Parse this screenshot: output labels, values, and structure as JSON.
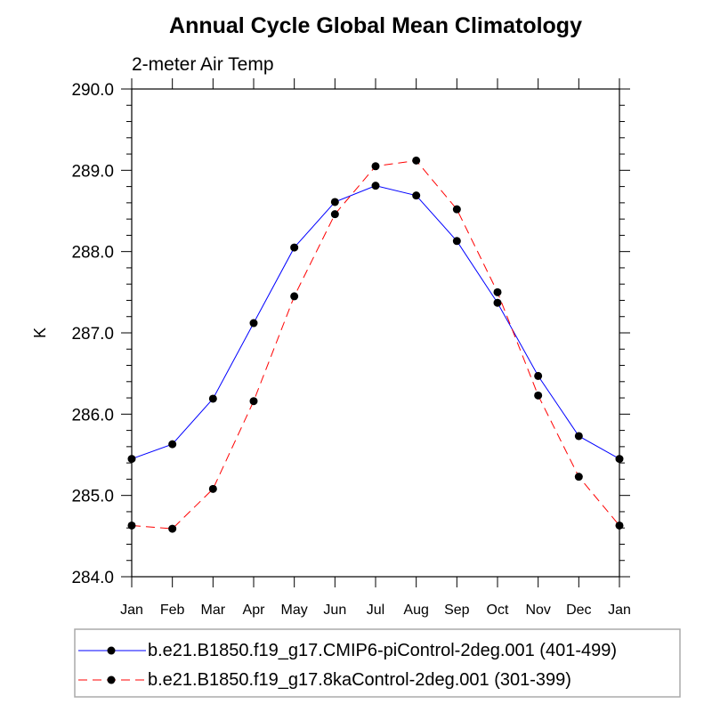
{
  "chart_data": {
    "type": "line",
    "title": "Annual Cycle Global Mean Climatology",
    "subtitle": "2-meter Air Temp",
    "xlabel": "",
    "ylabel": "K",
    "categories": [
      "Jan",
      "Feb",
      "Mar",
      "Apr",
      "May",
      "Jun",
      "Jul",
      "Aug",
      "Sep",
      "Oct",
      "Nov",
      "Dec",
      "Jan"
    ],
    "ylim": [
      284.0,
      290.0
    ],
    "yticks": [
      "284.0",
      "285.0",
      "286.0",
      "287.0",
      "288.0",
      "289.0",
      "290.0"
    ],
    "grid": false,
    "legend_position": "bottom",
    "series": [
      {
        "name": "b.e21.B1850.f19_g17.CMIP6-piControl-2deg.001 (401-499)",
        "color": "#0000ff",
        "dash": "solid",
        "marker": "filled-circle",
        "values": [
          285.45,
          285.63,
          286.19,
          287.12,
          288.05,
          288.61,
          288.81,
          288.69,
          288.13,
          287.37,
          286.47,
          285.73,
          285.45
        ]
      },
      {
        "name": "b.e21.B1850.f19_g17.8kaControl-2deg.001 (301-399)",
        "color": "#ff0000",
        "dash": "dashed",
        "marker": "filled-circle",
        "values": [
          284.63,
          284.59,
          285.08,
          286.16,
          287.45,
          288.46,
          289.05,
          289.12,
          288.52,
          287.5,
          286.23,
          285.23,
          284.63
        ]
      }
    ]
  }
}
